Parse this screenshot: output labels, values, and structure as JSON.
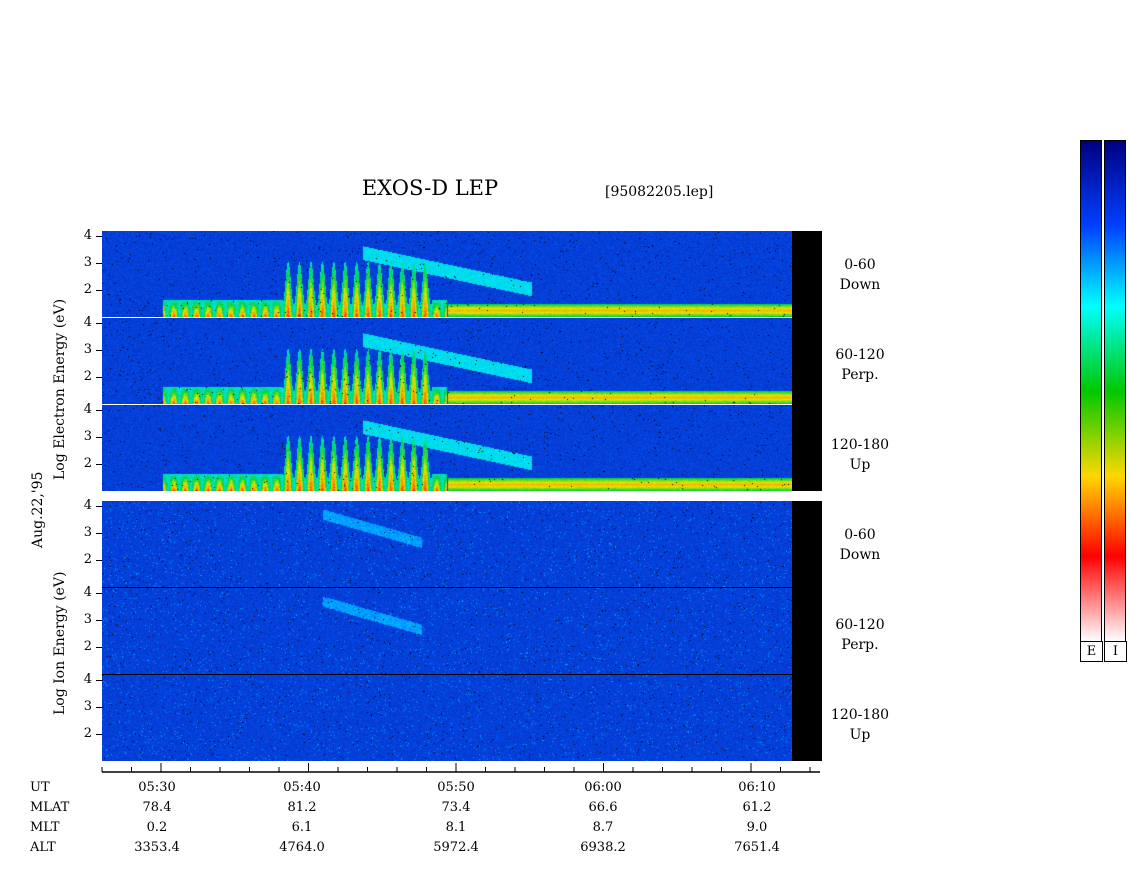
{
  "header": {
    "title": "EXOS-D LEP",
    "file": "[95082205.lep]"
  },
  "labels": {
    "date": "Aug.22,'95",
    "electron_axis": "Log Electron Energy (eV)",
    "ion_axis": "Log Ion Energy (eV)"
  },
  "y_ticks": [
    "4",
    "3",
    "2"
  ],
  "panels": [
    {
      "group": "electron",
      "angle": "0-60",
      "direction": "Down"
    },
    {
      "group": "electron",
      "angle": "60-120",
      "direction": "Perp."
    },
    {
      "group": "electron",
      "angle": "120-180",
      "direction": "Up"
    },
    {
      "group": "ion",
      "angle": "0-60",
      "direction": "Down"
    },
    {
      "group": "ion",
      "angle": "60-120",
      "direction": "Perp."
    },
    {
      "group": "ion",
      "angle": "120-180",
      "direction": "Up"
    }
  ],
  "time_axis": {
    "rows": [
      {
        "label": "UT",
        "values": [
          "05:30",
          "05:40",
          "05:50",
          "06:00",
          "06:10"
        ]
      },
      {
        "label": "MLAT",
        "values": [
          "78.4",
          "81.2",
          "73.4",
          "66.6",
          "61.2"
        ]
      },
      {
        "label": "MLT",
        "values": [
          "0.2",
          "6.1",
          "8.1",
          "8.7",
          "9.0"
        ]
      },
      {
        "label": "ALT",
        "values": [
          "3353.4",
          "4764.0",
          "5972.4",
          "6938.2",
          "7651.4"
        ]
      }
    ]
  },
  "colorbars": [
    {
      "label": "E"
    },
    {
      "label": "I"
    }
  ],
  "chart_data": {
    "type": "heatmap",
    "title": "EXOS-D LEP",
    "x_unit": "UT",
    "x_ticks": [
      "05:30",
      "05:40",
      "05:50",
      "06:00",
      "06:10"
    ],
    "ylim": [
      1,
      4.2
    ],
    "y_ticks": [
      2,
      3,
      4
    ],
    "colormap": [
      "#ffffff",
      "#ff0000",
      "#ffd800",
      "#00c800",
      "#00ffff",
      "#0040ff",
      "#000080"
    ]
  }
}
